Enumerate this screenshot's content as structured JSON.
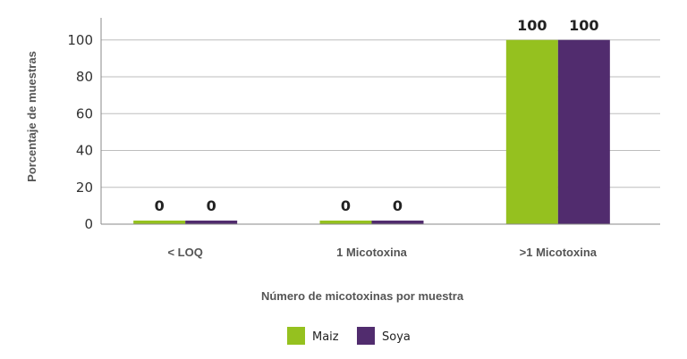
{
  "chart_data": {
    "type": "bar",
    "categories": [
      "< LOQ",
      "1 Micotoxina",
      ">1 Micotoxina"
    ],
    "series": [
      {
        "name": "Maiz",
        "values": [
          0,
          0,
          100
        ],
        "color": "#95c11f"
      },
      {
        "name": "Soya",
        "values": [
          0,
          0,
          100
        ],
        "color": "#512c6e"
      }
    ],
    "xlabel": "Número de micotoxinas por muestra",
    "ylabel": "Porcentaje de muestras",
    "ylim": [
      0,
      112
    ],
    "yticks": [
      0,
      20,
      40,
      60,
      80,
      100
    ],
    "grid": true,
    "legend": "bottom-center",
    "data_labels": true
  }
}
